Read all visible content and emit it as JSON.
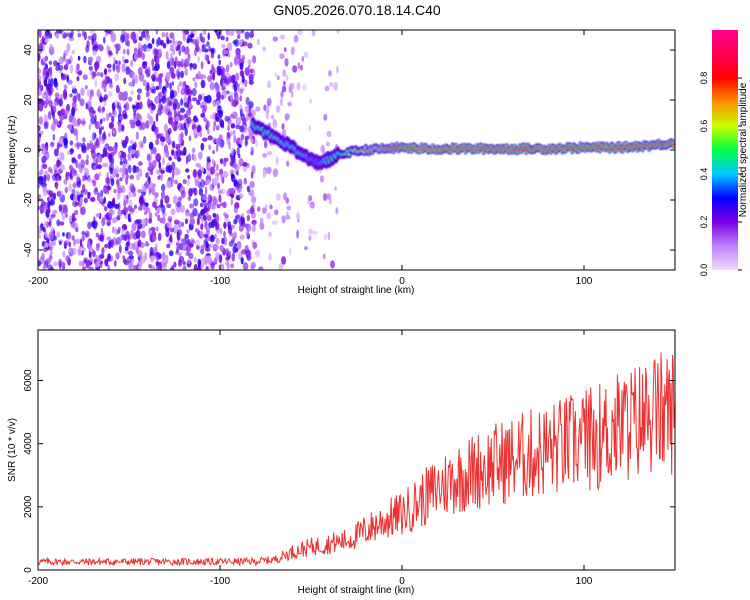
{
  "title": "GN05.2026.070.18.14.C40",
  "chart_data": [
    {
      "type": "heatmap",
      "xlabel": "Height of straight line (km)",
      "ylabel": "Frequency (Hz)",
      "xlim": [
        -200,
        150
      ],
      "ylim": [
        -48,
        48
      ],
      "xticks": [
        -200,
        -100,
        0,
        100
      ],
      "yticks": [
        -40,
        -20,
        0,
        20,
        40
      ],
      "colorbar": {
        "label": "Normalized spectral amplitude",
        "range": [
          0,
          1
        ],
        "ticks": [
          "0.0",
          "0.2",
          "0.4",
          "0.6",
          "0.8"
        ],
        "colors": [
          "#f2d9ff",
          "#c080ff",
          "#7a00e0",
          "#0000ff",
          "#00c8ff",
          "#00ff40",
          "#c8ff00",
          "#ff9000",
          "#ff0000",
          "#ff0050",
          "#ff0090"
        ]
      },
      "noise_region": {
        "x_start": -200,
        "x_end": -35,
        "amplitude": "0.1-0.3"
      },
      "signal_track": {
        "x": [
          -82,
          -75,
          -70,
          -65,
          -60,
          -55,
          -50,
          -45,
          -40,
          -35,
          -30,
          -20,
          -10,
          0,
          10,
          20,
          40,
          60,
          80,
          100,
          120,
          140,
          150
        ],
        "freq": [
          10,
          7,
          5,
          3,
          1,
          -2,
          -4,
          -5,
          -4,
          -2,
          -1,
          0,
          0.5,
          1,
          0.5,
          0.5,
          0.5,
          0.5,
          0.5,
          1,
          1,
          2,
          3
        ],
        "amplitude": [
          0.45,
          0.45,
          0.45,
          0.4,
          0.4,
          0.4,
          0.35,
          0.35,
          0.45,
          0.5,
          0.55,
          0.65,
          0.75,
          0.85,
          0.95,
          0.95,
          0.9,
          0.9,
          0.9,
          0.9,
          0.9,
          0.85,
          0.85
        ]
      }
    },
    {
      "type": "line",
      "xlabel": "Height of straight line (km)",
      "ylabel": "SNR (10 * v/v)",
      "xlim": [
        -200,
        150
      ],
      "ylim": [
        0,
        7600
      ],
      "xticks": [
        -200,
        -100,
        0,
        100
      ],
      "yticks": [
        0,
        2000,
        4000,
        6000
      ],
      "color": "#ee3030",
      "trend": {
        "x": [
          -200,
          -150,
          -100,
          -80,
          -70,
          -60,
          -50,
          -40,
          -30,
          -20,
          -10,
          0,
          10,
          20,
          30,
          40,
          50,
          60,
          70,
          80,
          90,
          100,
          110,
          120,
          130,
          140,
          150
        ],
        "y": [
          250,
          250,
          250,
          260,
          320,
          550,
          700,
          800,
          900,
          1200,
          1500,
          1700,
          2100,
          2500,
          2800,
          3000,
          3200,
          3350,
          3500,
          3650,
          3800,
          3950,
          4100,
          4350,
          4550,
          4750,
          4850
        ]
      }
    }
  ]
}
